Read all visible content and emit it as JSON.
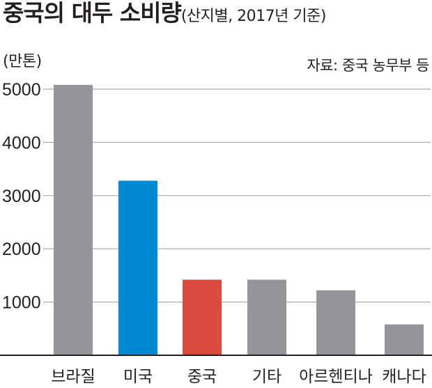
{
  "header": {
    "title": "중국의 대두 소비량",
    "subtitle": "(산지별, 2017년 기준)",
    "unit": "(만톤)",
    "source": "자료: 중국 농무부 등"
  },
  "chart_data": {
    "type": "bar",
    "title": "중국의 대두 소비량",
    "subtitle": "(산지별, 2017년 기준)",
    "ylabel": "(만톤)",
    "categories": [
      "브라질",
      "미국",
      "중국",
      "기타",
      "아르헨티나",
      "캐나다"
    ],
    "values": [
      5080,
      3280,
      1420,
      1420,
      1220,
      580
    ],
    "colors": [
      "#939598",
      "#0089d0",
      "#da4a3e",
      "#939598",
      "#939598",
      "#939598"
    ],
    "ylim": [
      0,
      5000
    ],
    "yticks": [
      1000,
      2000,
      3000,
      4000,
      5000
    ],
    "ytick_labels": [
      "1000",
      "2000",
      "3000",
      "4000",
      "5000"
    ],
    "grid": true,
    "legend": "none",
    "source": "자료: 중국 농무부 등"
  }
}
